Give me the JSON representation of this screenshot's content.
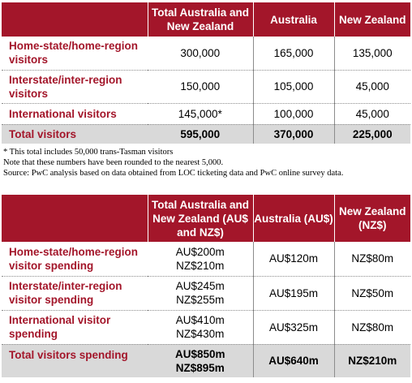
{
  "table1": {
    "headers": [
      "",
      "Total Australia and New Zealand",
      "Australia",
      "New Zealand"
    ],
    "rows": [
      {
        "label": "Home-state/home-region visitors",
        "total": "300,000",
        "australia": "165,000",
        "nz": "135,000"
      },
      {
        "label": "Interstate/inter-region visitors",
        "total": "150,000",
        "australia": "105,000",
        "nz": "45,000"
      },
      {
        "label": "International visitors",
        "total": "145,000*",
        "australia": "100,000",
        "nz": "45,000"
      }
    ],
    "total_row": {
      "label": "Total visitors",
      "total": "595,000",
      "australia": "370,000",
      "nz": "225,000"
    }
  },
  "notes": [
    "* This total includes 50,000 trans-Tasman visitors",
    "Note that these numbers have been rounded to the nearest 5,000.",
    "Source: PwC analysis based on data obtained from LOC ticketing data and PwC online survey data."
  ],
  "table2": {
    "headers": [
      "",
      "Total Australia and New Zealand (AU$ and NZ$)",
      "Australia (AU$)",
      "New Zealand (NZ$)"
    ],
    "rows": [
      {
        "label": "Home-state/home-region visitor spending",
        "total_au": "AU$200m",
        "total_nz": "NZ$210m",
        "australia": "AU$120m",
        "nz": "NZ$80m"
      },
      {
        "label": "Interstate/inter-region visitor spending",
        "total_au": "AU$245m",
        "total_nz": "NZ$255m",
        "australia": "AU$195m",
        "nz": "NZ$50m"
      },
      {
        "label": "International visitor spending",
        "total_au": "AU$410m",
        "total_nz": "NZ$430m",
        "australia": "AU$325m",
        "nz": "NZ$80m"
      }
    ],
    "total_row": {
      "label": "Total visitors spending",
      "total_au": "AU$850m",
      "total_nz": "NZ$895m",
      "australia": "AU$640m",
      "nz": "NZ$210m"
    }
  }
}
